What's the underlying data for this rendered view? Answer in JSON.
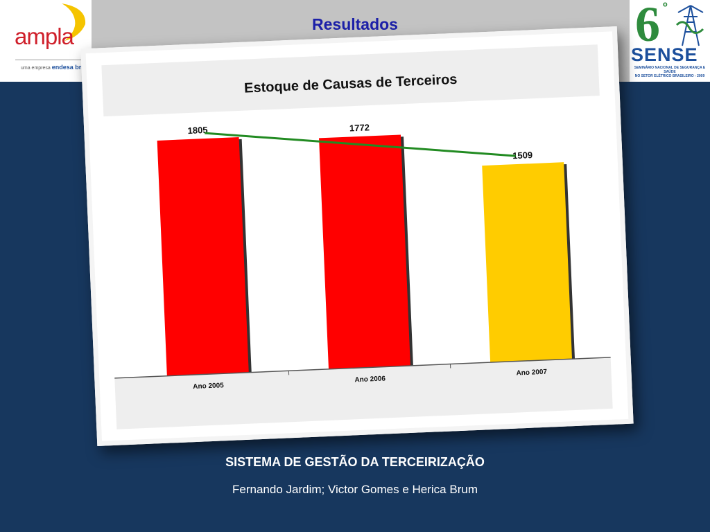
{
  "slide": {
    "title": "Resultados",
    "footer_title": "SISTEMA DE GESTÃO DA TERCEIRIZAÇÃO",
    "footer_authors": "Fernando Jardim; Victor Gomes e Herica Brum"
  },
  "logos": {
    "left": {
      "word": "ampla",
      "tagline_prefix": "uma empresa",
      "tagline_brand": "endesa brasil",
      "colors": {
        "word": "#cf1f2a",
        "sun": "#f5c400",
        "brand": "#1c4f9c"
      }
    },
    "right": {
      "number": "6",
      "ordinal": "º",
      "word": "SENSE",
      "subtitle_line1": "SEMINÁRIO NACIONAL DE SEGURANÇA E SAÚDE",
      "subtitle_line2": "NO SETOR ELÉTRICO BRASILEIRO - 2009",
      "colors": {
        "number": "#2e8b3d",
        "word": "#1c4f9c"
      }
    }
  },
  "colors": {
    "background": "#17375e",
    "header_band": "#c3c3c3",
    "title": "#1c20a8",
    "bar_red": "#ff0000",
    "bar_yellow": "#ffcc00",
    "trend_line": "#228b22"
  },
  "chart_data": {
    "type": "bar",
    "title": "Estoque de Causas de Terceiros",
    "categories": [
      "Ano 2005",
      "Ano 2006",
      "Ano 2007"
    ],
    "values": [
      1805,
      1772,
      1509
    ],
    "data_labels": [
      "1805",
      "1772",
      "1509"
    ],
    "bar_colors": [
      "#ff0000",
      "#ff0000",
      "#ffcc00"
    ],
    "trend_line": {
      "color": "#228b22",
      "points": [
        1805,
        1509
      ],
      "from": "Ano 2005",
      "to": "Ano 2007"
    },
    "xlabel": "",
    "ylabel": "",
    "grid": false,
    "legend": "none"
  }
}
